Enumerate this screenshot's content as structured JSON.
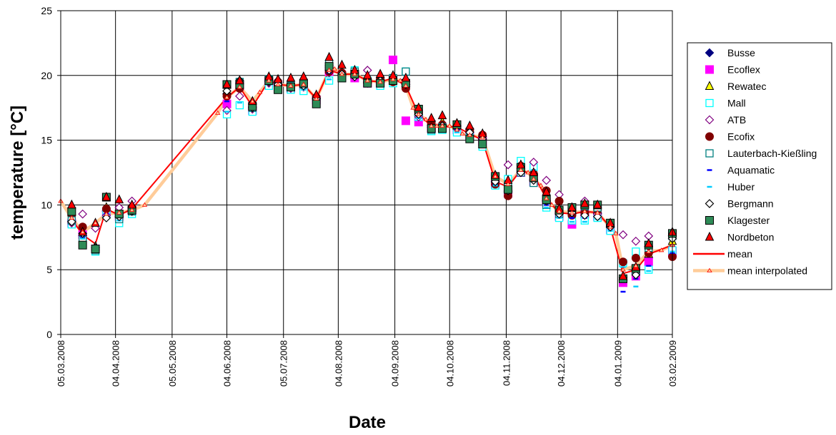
{
  "chart_data": {
    "type": "scatter",
    "title": "",
    "xlabel": "Date",
    "ylabel": "temperature [°C]",
    "ylim": [
      0,
      25
    ],
    "yticks": [
      0,
      5,
      10,
      15,
      20,
      25
    ],
    "xlim": [
      "2008-03-05",
      "2009-02-03"
    ],
    "xtick_labels": [
      "05.03.2008",
      "04.04.2008",
      "05.05.2008",
      "04.06.2008",
      "05.07.2008",
      "04.08.2008",
      "04.09.2008",
      "04.10.2008",
      "04.11.2008",
      "04.12.2008",
      "04.01.2009",
      "03.02.2009"
    ],
    "xtick_dates": [
      "2008-03-05",
      "2008-04-04",
      "2008-05-05",
      "2008-06-04",
      "2008-07-05",
      "2008-08-04",
      "2008-09-04",
      "2008-10-04",
      "2008-11-04",
      "2008-12-04",
      "2009-01-04",
      "2009-02-03"
    ],
    "grid": true,
    "legend_position": "right",
    "sampling_dates": [
      "2008-03-11",
      "2008-03-17",
      "2008-03-24",
      "2008-03-30",
      "2008-04-06",
      "2008-04-13",
      "2008-06-04",
      "2008-06-11",
      "2008-06-18",
      "2008-06-27",
      "2008-07-02",
      "2008-07-09",
      "2008-07-16",
      "2008-07-23",
      "2008-07-30",
      "2008-08-06",
      "2008-08-13",
      "2008-08-20",
      "2008-08-27",
      "2008-09-03",
      "2008-09-10",
      "2008-09-17",
      "2008-09-24",
      "2008-09-30",
      "2008-10-08",
      "2008-10-15",
      "2008-10-22",
      "2008-10-29",
      "2008-11-05",
      "2008-11-12",
      "2008-11-19",
      "2008-11-26",
      "2008-12-03",
      "2008-12-10",
      "2008-12-17",
      "2008-12-24",
      "2008-12-31",
      "2009-01-07",
      "2009-01-14",
      "2009-01-21",
      "2009-02-03"
    ],
    "series": [
      {
        "name": "Busse",
        "marker": "diamond-filled",
        "color": "#000080",
        "values": [
          8.8,
          7.6,
          6.7,
          9.5,
          9.3,
          9.6,
          18.6,
          19.4,
          17.6,
          19.6,
          19.4,
          19.3,
          19.4,
          18.2,
          20.6,
          20.1,
          20.0,
          19.5,
          19.5,
          19.6,
          19.3,
          16.9,
          16.1,
          16.1,
          15.9,
          15.6,
          15.0,
          11.8,
          11.0,
          12.6,
          11.9,
          10.3,
          9.3,
          9.3,
          9.4,
          9.4,
          8.3,
          4.2,
          4.7,
          5.9,
          6.7
        ]
      },
      {
        "name": "Ecoflex",
        "marker": "square-filled",
        "color": "#FF00FF",
        "values": [
          8.6,
          7.7,
          6.6,
          9.4,
          9.1,
          9.6,
          17.8,
          19.2,
          17.3,
          19.5,
          19.3,
          19.0,
          19.2,
          18.1,
          20.3,
          20.0,
          19.8,
          19.4,
          19.4,
          21.2,
          16.5,
          16.4,
          15.9,
          16.0,
          15.8,
          15.3,
          14.9,
          11.6,
          10.9,
          12.5,
          11.8,
          10.2,
          9.1,
          8.5,
          9.3,
          9.1,
          8.1,
          4.0,
          4.5,
          5.6,
          6.4
        ]
      },
      {
        "name": "Rewatec",
        "marker": "triangle-yellow",
        "color": "#FFFF00",
        "values": [
          9.0,
          7.9,
          6.8,
          9.8,
          9.5,
          9.8,
          18.8,
          19.6,
          17.8,
          19.8,
          19.6,
          19.5,
          19.6,
          18.4,
          21.0,
          20.3,
          20.2,
          19.7,
          19.7,
          19.8,
          19.4,
          17.2,
          16.4,
          16.4,
          16.1,
          15.9,
          15.3,
          12.0,
          11.3,
          12.8,
          12.2,
          10.6,
          9.6,
          9.6,
          9.7,
          9.6,
          8.5,
          4.4,
          5.0,
          6.2,
          7.2
        ]
      },
      {
        "name": "Mall",
        "marker": "square-open",
        "color": "#00FFFF",
        "values": [
          8.5,
          7.2,
          6.4,
          9.3,
          8.6,
          9.3,
          17.0,
          17.7,
          17.2,
          19.2,
          19.0,
          18.9,
          18.8,
          17.9,
          19.6,
          19.9,
          20.4,
          19.6,
          19.2,
          19.4,
          20.3,
          16.8,
          15.7,
          15.8,
          15.6,
          15.2,
          14.5,
          11.5,
          12.0,
          13.4,
          12.9,
          9.8,
          9.0,
          8.8,
          8.8,
          9.0,
          8.0,
          5.5,
          6.4,
          5.0,
          6.5
        ]
      },
      {
        "name": "ATB",
        "marker": "diamond-open",
        "color": "#800080",
        "values": [
          8.6,
          9.3,
          8.2,
          9.2,
          9.8,
          10.3,
          17.3,
          18.4,
          17.4,
          19.4,
          19.2,
          19.0,
          19.1,
          18.4,
          20.2,
          20.0,
          19.9,
          20.4,
          19.7,
          19.9,
          19.5,
          16.8,
          16.5,
          16.2,
          16.1,
          15.9,
          15.3,
          12.3,
          13.1,
          12.8,
          13.3,
          11.9,
          10.8,
          9.4,
          10.3,
          9.3,
          8.5,
          7.7,
          7.2,
          7.6,
          7.6
        ]
      },
      {
        "name": "Ecofix",
        "marker": "circle-filled",
        "color": "#800000",
        "values": [
          9.2,
          8.3,
          6.6,
          9.7,
          9.1,
          9.8,
          18.4,
          19.0,
          17.8,
          19.7,
          19.5,
          19.4,
          19.5,
          18.3,
          20.3,
          20.2,
          20.0,
          19.5,
          19.8,
          19.5,
          19.0,
          17.1,
          16.3,
          16.2,
          16.0,
          15.8,
          15.4,
          11.6,
          10.7,
          13.0,
          12.4,
          11.1,
          10.3,
          9.2,
          9.4,
          9.6,
          8.4,
          5.6,
          5.9,
          6.3,
          6.0
        ]
      },
      {
        "name": "Lauterbach-Kießling",
        "marker": "square-open",
        "color": "#008080",
        "values": [
          8.8,
          7.3,
          6.5,
          10.6,
          8.9,
          9.5,
          19.3,
          19.5,
          17.5,
          19.7,
          19.1,
          19.2,
          19.3,
          18.0,
          20.9,
          19.9,
          20.3,
          19.4,
          19.4,
          19.8,
          20.3,
          17.4,
          15.8,
          16.0,
          16.2,
          15.1,
          14.7,
          12.2,
          11.6,
          12.5,
          11.7,
          10.0,
          9.3,
          9.8,
          9.9,
          9.8,
          8.6,
          4.3,
          4.9,
          6.7,
          7.6
        ]
      },
      {
        "name": "Aquamatic",
        "marker": "dash",
        "color": "#0000FF",
        "values": [
          8.7,
          7.5,
          6.5,
          9.3,
          9.0,
          9.5,
          18.0,
          19.1,
          17.5,
          19.5,
          19.2,
          19.1,
          19.2,
          18.0,
          20.2,
          20.0,
          19.9,
          19.4,
          19.4,
          19.4,
          19.2,
          16.8,
          15.9,
          16.0,
          15.8,
          15.4,
          14.8,
          11.6,
          11.0,
          12.4,
          11.8,
          10.0,
          9.1,
          9.0,
          9.0,
          9.0,
          8.1,
          3.3,
          4.3,
          5.3,
          6.3
        ]
      },
      {
        "name": "Huber",
        "marker": "dash",
        "color": "#00CCFF",
        "values": [
          8.6,
          7.4,
          6.4,
          9.2,
          8.8,
          9.4,
          17.2,
          17.9,
          17.3,
          19.3,
          19.0,
          18.9,
          18.9,
          17.9,
          19.7,
          19.9,
          20.2,
          19.5,
          19.2,
          19.4,
          19.8,
          16.7,
          15.7,
          15.8,
          15.6,
          15.2,
          14.6,
          11.5,
          11.9,
          13.1,
          12.7,
          9.8,
          9.0,
          8.7,
          8.7,
          8.9,
          8.0,
          5.2,
          3.7,
          4.9,
          6.4
        ]
      },
      {
        "name": "Bergmann",
        "marker": "diamond-open",
        "color": "#000000",
        "values": [
          8.7,
          7.8,
          6.7,
          9.0,
          9.1,
          9.5,
          18.8,
          19.6,
          17.5,
          19.5,
          19.3,
          19.1,
          19.2,
          18.2,
          20.4,
          20.1,
          19.9,
          19.4,
          19.6,
          19.6,
          19.3,
          17.0,
          16.0,
          16.1,
          16.1,
          15.6,
          15.1,
          11.8,
          11.1,
          12.5,
          11.9,
          10.3,
          9.3,
          9.4,
          9.2,
          9.1,
          8.3,
          4.4,
          4.6,
          6.8,
          7.4
        ]
      },
      {
        "name": "Klagester",
        "marker": "square-filled",
        "color": "#2E8B57",
        "values": [
          9.5,
          6.9,
          6.6,
          10.6,
          9.3,
          9.6,
          19.3,
          19.3,
          17.6,
          19.6,
          18.9,
          19.1,
          19.4,
          17.8,
          20.7,
          19.8,
          20.1,
          19.4,
          19.4,
          19.6,
          19.4,
          17.4,
          15.9,
          15.9,
          16.2,
          15.1,
          14.7,
          12.2,
          11.2,
          12.9,
          12.1,
          10.4,
          9.6,
          9.8,
          10.0,
          10.0,
          8.6,
          4.3,
          5.1,
          6.9,
          7.8
        ]
      },
      {
        "name": "Nordbeton",
        "marker": "triangle-red",
        "color": "#FF0000",
        "values": [
          10.0,
          7.9,
          8.6,
          10.6,
          10.4,
          10.0,
          19.3,
          19.6,
          18.0,
          19.9,
          19.7,
          19.8,
          19.9,
          18.5,
          21.4,
          20.8,
          20.4,
          20.0,
          20.1,
          20.0,
          19.8,
          17.5,
          16.7,
          16.9,
          16.3,
          16.1,
          15.5,
          12.3,
          11.9,
          13.1,
          12.5,
          11.0,
          9.7,
          9.8,
          10.1,
          10.0,
          8.6,
          4.5,
          5.2,
          7.0,
          7.9
        ]
      }
    ],
    "mean_series": {
      "name": "mean",
      "color": "#FF0000",
      "dates": [
        "2008-03-11",
        "2008-03-17",
        "2008-03-24",
        "2008-03-30",
        "2008-04-06",
        "2008-04-13",
        "2008-06-04",
        "2008-06-11",
        "2008-06-18",
        "2008-06-27",
        "2008-07-02",
        "2008-07-09",
        "2008-07-16",
        "2008-07-23",
        "2008-07-30",
        "2008-08-06",
        "2008-08-13",
        "2008-08-20",
        "2008-08-27",
        "2008-09-03",
        "2008-09-10",
        "2008-09-17",
        "2008-09-24",
        "2008-09-30",
        "2008-10-08",
        "2008-10-15",
        "2008-10-22",
        "2008-10-29",
        "2008-11-05",
        "2008-11-12",
        "2008-11-19",
        "2008-11-26",
        "2008-12-03",
        "2008-12-10",
        "2008-12-17",
        "2008-12-24",
        "2008-12-31",
        "2009-01-07",
        "2009-01-14",
        "2009-01-21",
        "2009-02-03"
      ],
      "values": [
        8.9,
        7.7,
        7.0,
        9.7,
        9.2,
        9.7,
        18.3,
        19.1,
        17.6,
        19.6,
        19.3,
        19.2,
        19.3,
        18.2,
        20.4,
        20.1,
        20.1,
        19.6,
        19.5,
        19.8,
        19.2,
        17.0,
        16.1,
        16.1,
        16.0,
        15.5,
        15.0,
        11.8,
        11.4,
        12.7,
        12.3,
        10.5,
        9.4,
        9.3,
        9.5,
        9.4,
        8.3,
        4.7,
        5.0,
        6.2,
        6.9
      ]
    },
    "interpolated_series": {
      "name": "mean interpolated",
      "color": "#FFCC99",
      "marker_color": "#FF0000",
      "dates": [
        "2008-03-05",
        "2008-03-11",
        "2008-03-17",
        "2008-03-24",
        "2008-03-30",
        "2008-04-06",
        "2008-04-13",
        "2008-04-20",
        "2008-05-30",
        "2008-06-04",
        "2008-06-11",
        "2008-06-18",
        "2008-06-22",
        "2008-06-27",
        "2008-07-02",
        "2008-07-09",
        "2008-07-16",
        "2008-07-23",
        "2008-07-30",
        "2008-08-02",
        "2008-08-06",
        "2008-08-13",
        "2008-08-20",
        "2008-08-27",
        "2008-09-03",
        "2008-09-07",
        "2008-09-10",
        "2008-09-14",
        "2008-09-17",
        "2008-09-21",
        "2008-09-24",
        "2008-09-27",
        "2008-09-30",
        "2008-10-04",
        "2008-10-08",
        "2008-10-11",
        "2008-10-15",
        "2008-10-22",
        "2008-10-29",
        "2008-11-05",
        "2008-11-12",
        "2008-11-16",
        "2008-11-19",
        "2008-11-23",
        "2008-11-26",
        "2008-11-29",
        "2008-12-03",
        "2008-12-10",
        "2008-12-17",
        "2008-12-24",
        "2008-12-31",
        "2009-01-03",
        "2009-01-07",
        "2009-01-14",
        "2009-01-21",
        "2009-01-28",
        "2009-02-03"
      ],
      "values": [
        10.3,
        9.0,
        7.9,
        8.6,
        9.3,
        9.4,
        9.6,
        10.0,
        17.1,
        18.3,
        19.1,
        18.0,
        18.7,
        19.6,
        19.3,
        19.2,
        19.3,
        18.2,
        20.4,
        20.5,
        20.1,
        20.1,
        19.6,
        19.5,
        19.7,
        19.6,
        19.2,
        17.5,
        17.0,
        16.6,
        16.1,
        16.1,
        16.1,
        16.1,
        15.8,
        15.5,
        15.4,
        15.2,
        12.2,
        11.6,
        12.7,
        12.5,
        12.0,
        11.5,
        10.5,
        10.0,
        9.5,
        9.4,
        9.5,
        9.4,
        8.3,
        7.8,
        5.0,
        5.3,
        6.4,
        6.5,
        6.9
      ]
    }
  }
}
